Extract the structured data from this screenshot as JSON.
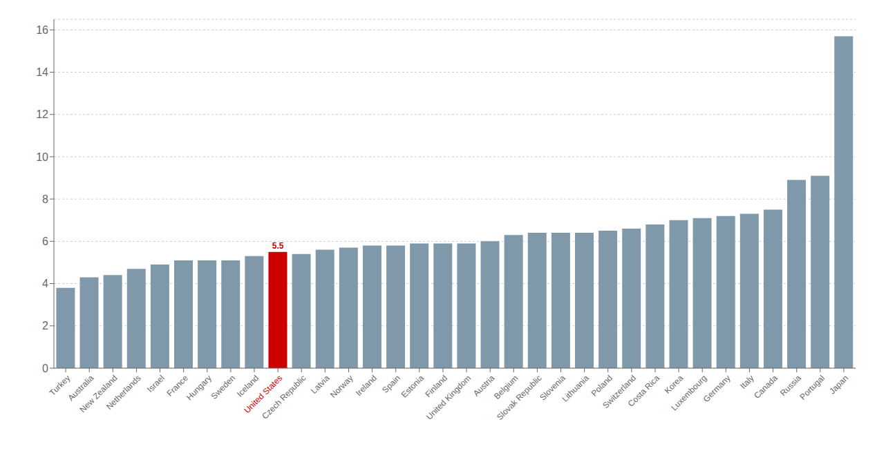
{
  "chart_data": {
    "type": "bar",
    "categories": [
      "Turkey",
      "Australia",
      "New Zealand",
      "Netherlands",
      "Israel",
      "France",
      "Hungary",
      "Sweden",
      "Iceland",
      "United States",
      "Czech Republic",
      "Latvia",
      "Norway",
      "Ireland",
      "Spain",
      "Estonia",
      "Finland",
      "United Kingdom",
      "Austria",
      "Belgium",
      "Slovak Republic",
      "Slovenia",
      "Lithuania",
      "Poland",
      "Switzerland",
      "Costa Rica",
      "Korea",
      "Luxembourg",
      "Germany",
      "Italy",
      "Canada",
      "Russia",
      "Portugal",
      "Japan"
    ],
    "values": [
      3.8,
      4.3,
      4.4,
      4.7,
      4.9,
      5.1,
      5.1,
      5.1,
      5.3,
      5.5,
      5.4,
      5.6,
      5.7,
      5.8,
      5.8,
      5.9,
      5.9,
      5.9,
      6.0,
      6.3,
      6.4,
      6.4,
      6.4,
      6.5,
      6.6,
      6.8,
      7.0,
      7.1,
      7.2,
      7.3,
      7.5,
      8.9,
      9.1,
      15.7
    ],
    "colors": [
      "#7f99aa",
      "#7f99aa",
      "#7f99aa",
      "#7f99aa",
      "#7f99aa",
      "#7f99aa",
      "#7f99aa",
      "#7f99aa",
      "#7f99aa",
      "#cc0000",
      "#7f99aa",
      "#7f99aa",
      "#7f99aa",
      "#7f99aa",
      "#7f99aa",
      "#7f99aa",
      "#7f99aa",
      "#7f99aa",
      "#7f99aa",
      "#7f99aa",
      "#7f99aa",
      "#7f99aa",
      "#7f99aa",
      "#7f99aa",
      "#7f99aa",
      "#7f99aa",
      "#7f99aa",
      "#7f99aa",
      "#7f99aa",
      "#7f99aa",
      "#7f99aa",
      "#7f99aa",
      "#7f99aa",
      "#7f99aa"
    ],
    "annotations": [
      {
        "text": "5.5",
        "x": "United States",
        "y": 5.5,
        "color": "#cc0000"
      }
    ],
    "ylim": [
      0,
      16.5
    ],
    "yticks": [
      0,
      2,
      4,
      6,
      8,
      10,
      12,
      14,
      16
    ],
    "grid": true
  }
}
